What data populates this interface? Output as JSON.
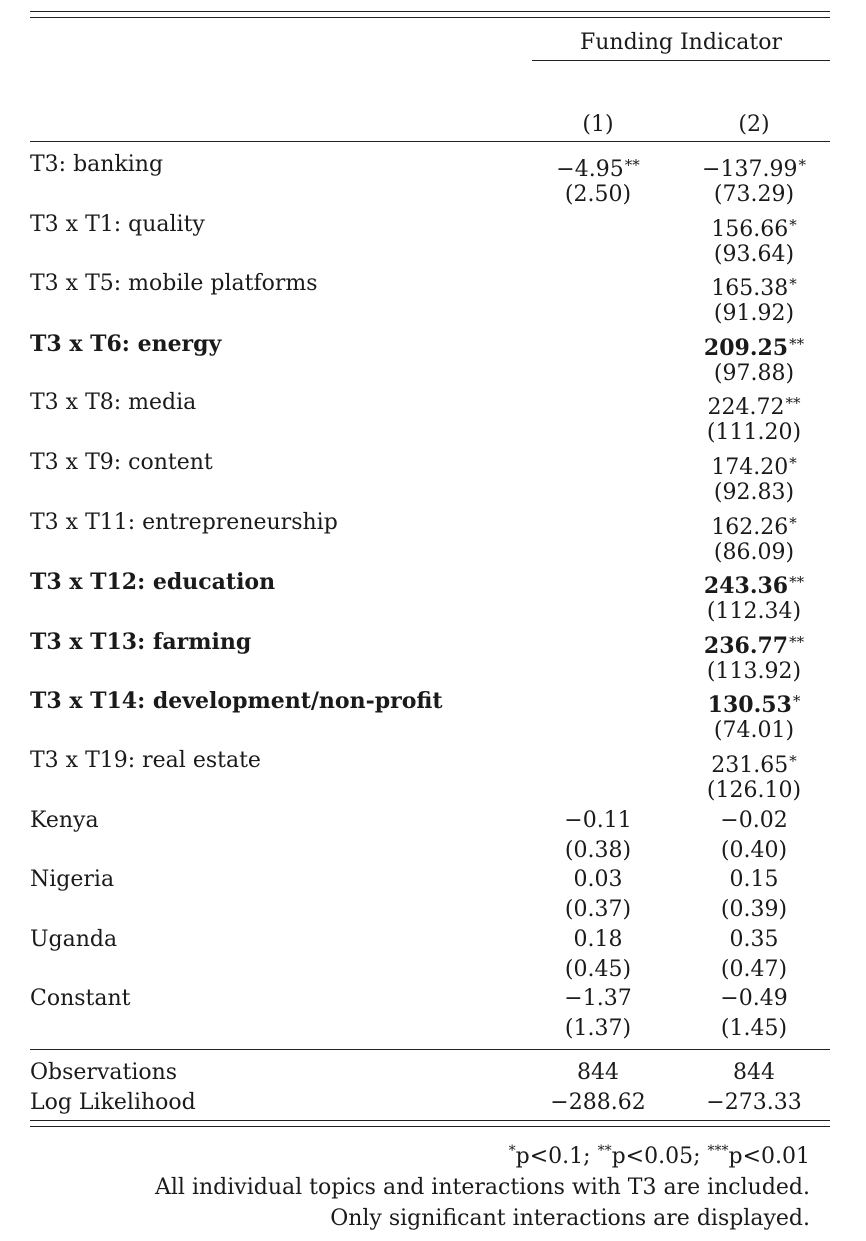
{
  "header": {
    "group_title": "Funding Indicator",
    "col1": "(1)",
    "col2": "(2)"
  },
  "rows": [
    {
      "label": "T3: banking",
      "bold": false,
      "c1": "−4.95",
      "c1_stars": "**",
      "c1_se": "(2.50)",
      "c2": "−137.99",
      "c2_stars": "*",
      "c2_se": "(73.29)"
    },
    {
      "label": "T3 x T1: quality",
      "bold": false,
      "c1": "",
      "c1_stars": "",
      "c1_se": "",
      "c2": "156.66",
      "c2_stars": "*",
      "c2_se": "(93.64)"
    },
    {
      "label": "T3 x T5: mobile platforms",
      "bold": false,
      "c1": "",
      "c1_stars": "",
      "c1_se": "",
      "c2": "165.38",
      "c2_stars": "*",
      "c2_se": "(91.92)"
    },
    {
      "label": "T3 x T6: energy",
      "bold": true,
      "c1": "",
      "c1_stars": "",
      "c1_se": "",
      "c2": "209.25",
      "c2_stars": "**",
      "c2_se": "(97.88)"
    },
    {
      "label": "T3 x T8: media",
      "bold": false,
      "c1": "",
      "c1_stars": "",
      "c1_se": "",
      "c2": "224.72",
      "c2_stars": "**",
      "c2_se": "(111.20)"
    },
    {
      "label": "T3 x T9: content",
      "bold": false,
      "c1": "",
      "c1_stars": "",
      "c1_se": "",
      "c2": "174.20",
      "c2_stars": "*",
      "c2_se": "(92.83)"
    },
    {
      "label": "T3 x T11: entrepreneurship",
      "bold": false,
      "c1": "",
      "c1_stars": "",
      "c1_se": "",
      "c2": "162.26",
      "c2_stars": "*",
      "c2_se": "(86.09)"
    },
    {
      "label": "T3 x T12: education",
      "bold": true,
      "c1": "",
      "c1_stars": "",
      "c1_se": "",
      "c2": "243.36",
      "c2_stars": "**",
      "c2_se": "(112.34)"
    },
    {
      "label": "T3 x T13: farming",
      "bold": true,
      "c1": "",
      "c1_stars": "",
      "c1_se": "",
      "c2": "236.77",
      "c2_stars": "**",
      "c2_se": "(113.92)"
    },
    {
      "label": "T3 x T14: development/non-profit",
      "bold": true,
      "c1": "",
      "c1_stars": "",
      "c1_se": "",
      "c2": "130.53",
      "c2_stars": "*",
      "c2_se": "(74.01)"
    },
    {
      "label": "T3 x T19: real estate",
      "bold": false,
      "c1": "",
      "c1_stars": "",
      "c1_se": "",
      "c2": "231.65",
      "c2_stars": "*",
      "c2_se": "(126.10)"
    },
    {
      "label": "Kenya",
      "bold": false,
      "c1": "−0.11",
      "c1_stars": "",
      "c1_se": "(0.38)",
      "c2": "−0.02",
      "c2_stars": "",
      "c2_se": "(0.40)"
    },
    {
      "label": "Nigeria",
      "bold": false,
      "c1": "0.03",
      "c1_stars": "",
      "c1_se": "(0.37)",
      "c2": "0.15",
      "c2_stars": "",
      "c2_se": "(0.39)"
    },
    {
      "label": "Uganda",
      "bold": false,
      "c1": "0.18",
      "c1_stars": "",
      "c1_se": "(0.45)",
      "c2": "0.35",
      "c2_stars": "",
      "c2_se": "(0.47)"
    },
    {
      "label": "Constant",
      "bold": false,
      "c1": "−1.37",
      "c1_stars": "",
      "c1_se": "(1.37)",
      "c2": "−0.49",
      "c2_stars": "",
      "c2_se": "(1.45)"
    }
  ],
  "stats": [
    {
      "label": "Observations",
      "c1": "844",
      "c2": "844"
    },
    {
      "label": "Log Likelihood",
      "c1": "−288.62",
      "c2": "−273.33"
    }
  ],
  "notes": {
    "sig_1_stars": "*",
    "sig_1_text": "p<0.1; ",
    "sig_2_stars": "**",
    "sig_2_text": "p<0.05; ",
    "sig_3_stars": "***",
    "sig_3_text": "p<0.01",
    "line2": "All individual topics and interactions with T3 are included.",
    "line3": "Only significant interactions are displayed."
  }
}
